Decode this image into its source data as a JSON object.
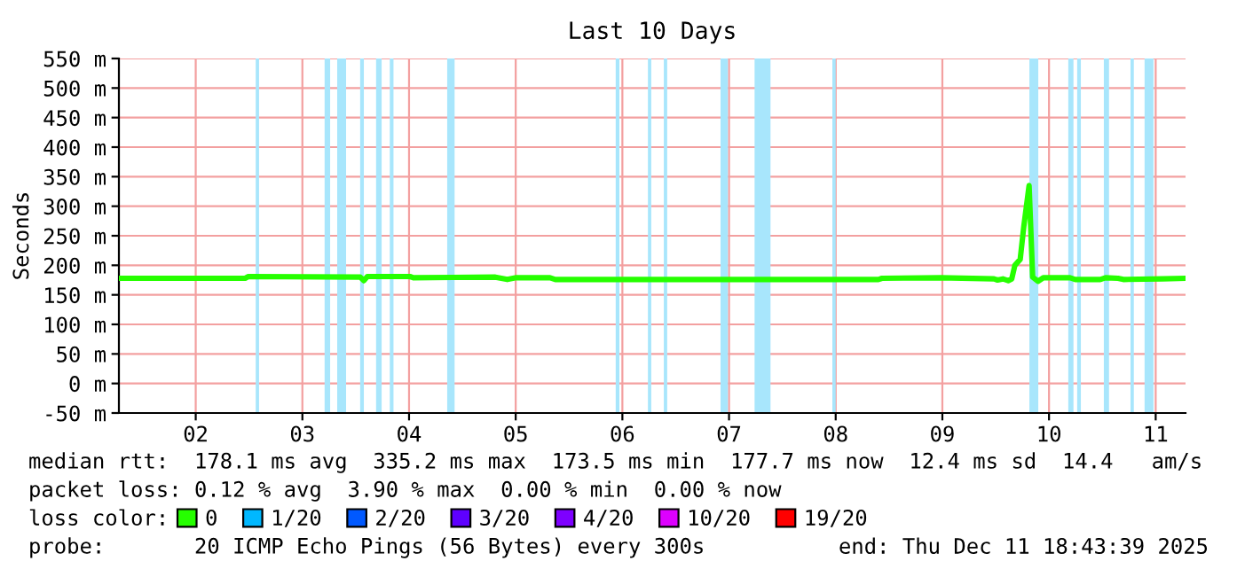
{
  "chart_data": {
    "type": "line",
    "title": "Last 10 Days",
    "ylabel": "Seconds",
    "xlim": [
      "2025-12-01T18:43",
      "2025-12-11T18:43"
    ],
    "xticks": [
      {
        "value": "2025-12-02T12:00",
        "label": "02"
      },
      {
        "value": "2025-12-03T12:00",
        "label": "03"
      },
      {
        "value": "2025-12-04T12:00",
        "label": "04"
      },
      {
        "value": "2025-12-05T12:00",
        "label": "05"
      },
      {
        "value": "2025-12-06T12:00",
        "label": "06"
      },
      {
        "value": "2025-12-07T12:00",
        "label": "07"
      },
      {
        "value": "2025-12-08T12:00",
        "label": "08"
      },
      {
        "value": "2025-12-09T12:00",
        "label": "09"
      },
      {
        "value": "2025-12-10T12:00",
        "label": "10"
      },
      {
        "value": "2025-12-11T12:00",
        "label": "11"
      }
    ],
    "ylim": [
      -50,
      550
    ],
    "yticks": [
      {
        "value": -50,
        "label": "-50 m"
      },
      {
        "value": 0,
        "label": "0 m"
      },
      {
        "value": 50,
        "label": "50 m"
      },
      {
        "value": 100,
        "label": "100 m"
      },
      {
        "value": 150,
        "label": "150 m"
      },
      {
        "value": 200,
        "label": "200 m"
      },
      {
        "value": 250,
        "label": "250 m"
      },
      {
        "value": 300,
        "label": "300 m"
      },
      {
        "value": 350,
        "label": "350 m"
      },
      {
        "value": 400,
        "label": "400 m"
      },
      {
        "value": 450,
        "label": "450 m"
      },
      {
        "value": 500,
        "label": "500 m"
      },
      {
        "value": 550,
        "label": "550 m"
      }
    ],
    "grid": true,
    "legend": "bottom",
    "legend_title": "loss color:",
    "x": [
      "2025-12-01T18:43",
      "2025-12-02T23:07",
      "2025-12-02T23:51",
      "2025-12-04T01:01",
      "2025-12-04T01:49",
      "2025-12-04T02:37",
      "2025-12-04T12:13",
      "2025-12-04T12:58",
      "2025-12-05T07:25",
      "2025-12-05T10:07",
      "2025-12-05T12:07",
      "2025-12-05T19:43",
      "2025-12-05T20:55",
      "2025-12-08T21:37",
      "2025-12-08T22:25",
      "2025-12-09T11:37",
      "2025-12-09T23:37",
      "2025-12-10T00:25",
      "2025-12-10T01:37",
      "2025-12-10T02:49",
      "2025-12-10T03:37",
      "2025-12-10T04:19",
      "2025-12-10T05:31",
      "2025-12-10T06:19",
      "2025-12-10T07:31",
      "2025-12-10T08:19",
      "2025-12-10T09:31",
      "2025-12-10T10:43",
      "2025-12-10T16:43",
      "2025-12-10T17:55",
      "2025-12-10T23:31",
      "2025-12-11T00:43",
      "2025-12-11T03:31",
      "2025-12-11T04:43",
      "2025-12-11T13:31",
      "2025-12-11T18:43"
    ],
    "series": [
      {
        "name": "0",
        "color": "#26ff00",
        "values": [
          178,
          178,
          181,
          180,
          174,
          181,
          181,
          179,
          180,
          176,
          179,
          179,
          176,
          176,
          178,
          179,
          177,
          175,
          177,
          174,
          177,
          200,
          210,
          265,
          335,
          180,
          173,
          179,
          179,
          176,
          176,
          179,
          178,
          176,
          177,
          178
        ]
      },
      {
        "name": "1/20",
        "color": "#00b8ff",
        "values": [
          null,
          null,
          null,
          null,
          null,
          null,
          null,
          null,
          null,
          null,
          null,
          null,
          null,
          null,
          null,
          null,
          null,
          null,
          null,
          null,
          null,
          null,
          null,
          null,
          null,
          null,
          null,
          null,
          null,
          null,
          null,
          null,
          null,
          null,
          null,
          null
        ]
      },
      {
        "name": "2/20",
        "color": "#0059ff",
        "values": [
          null,
          null,
          null,
          null,
          null,
          null,
          null,
          null,
          null,
          null,
          null,
          null,
          null,
          null,
          null,
          null,
          null,
          null,
          null,
          null,
          null,
          null,
          null,
          null,
          null,
          null,
          null,
          null,
          null,
          null,
          null,
          null,
          null,
          null,
          null,
          null
        ]
      },
      {
        "name": "3/20",
        "color": "#5e00ff",
        "values": [
          null,
          null,
          null,
          null,
          null,
          null,
          null,
          null,
          null,
          null,
          null,
          null,
          null,
          null,
          null,
          null,
          null,
          null,
          null,
          null,
          null,
          null,
          null,
          null,
          null,
          null,
          null,
          null,
          null,
          null,
          null,
          null,
          null,
          null,
          null,
          null
        ]
      },
      {
        "name": "4/20",
        "color": "#7e00ff",
        "values": [
          null,
          null,
          null,
          null,
          null,
          null,
          null,
          null,
          null,
          null,
          null,
          null,
          null,
          null,
          null,
          null,
          null,
          null,
          null,
          null,
          null,
          null,
          null,
          null,
          null,
          null,
          null,
          null,
          null,
          null,
          null,
          null,
          null,
          null,
          null,
          null
        ]
      },
      {
        "name": "10/20",
        "color": "#dd00ff",
        "values": [
          null,
          null,
          null,
          null,
          null,
          null,
          null,
          null,
          null,
          null,
          null,
          null,
          null,
          null,
          null,
          null,
          null,
          null,
          null,
          null,
          null,
          null,
          null,
          null,
          null,
          null,
          null,
          null,
          null,
          null,
          null,
          null,
          null,
          null,
          null,
          null
        ]
      },
      {
        "name": "19/20",
        "color": "#ff0000",
        "values": [
          null,
          null,
          null,
          null,
          null,
          null,
          null,
          null,
          null,
          null,
          null,
          null,
          null,
          null,
          null,
          null,
          null,
          null,
          null,
          null,
          null,
          null,
          null,
          null,
          null,
          null,
          null,
          null,
          null,
          null,
          null,
          null,
          null,
          null,
          null,
          null
        ]
      }
    ],
    "bands": [
      {
        "axis": "x",
        "from": "2025-12-03T01:30",
        "to": "2025-12-03T02:15",
        "color": "#a8e6fc"
      },
      {
        "axis": "x",
        "from": "2025-12-03T17:00",
        "to": "2025-12-03T18:15",
        "color": "#a8e6fc"
      },
      {
        "axis": "x",
        "from": "2025-12-03T19:50",
        "to": "2025-12-03T21:50",
        "color": "#a8e6fc"
      },
      {
        "axis": "x",
        "from": "2025-12-04T01:00",
        "to": "2025-12-04T01:50",
        "color": "#a8e6fc"
      },
      {
        "axis": "x",
        "from": "2025-12-04T04:35",
        "to": "2025-12-04T05:50",
        "color": "#a8e6fc"
      },
      {
        "axis": "x",
        "from": "2025-12-04T07:40",
        "to": "2025-12-04T08:30",
        "color": "#a8e6fc"
      },
      {
        "axis": "x",
        "from": "2025-12-04T20:35",
        "to": "2025-12-04T22:15",
        "color": "#a8e6fc"
      },
      {
        "axis": "x",
        "from": "2025-12-06T10:30",
        "to": "2025-12-06T11:20",
        "color": "#a8e6fc"
      },
      {
        "axis": "x",
        "from": "2025-12-06T17:45",
        "to": "2025-12-06T18:30",
        "color": "#a8e6fc"
      },
      {
        "axis": "x",
        "from": "2025-12-06T21:20",
        "to": "2025-12-06T22:05",
        "color": "#a8e6fc"
      },
      {
        "axis": "x",
        "from": "2025-12-07T10:05",
        "to": "2025-12-07T11:45",
        "color": "#a8e6fc"
      },
      {
        "axis": "x",
        "from": "2025-12-07T17:45",
        "to": "2025-12-07T21:20",
        "color": "#a8e6fc"
      },
      {
        "axis": "x",
        "from": "2025-12-08T11:15",
        "to": "2025-12-08T12:00",
        "color": "#a8e6fc"
      },
      {
        "axis": "x",
        "from": "2025-12-10T07:35",
        "to": "2025-12-10T09:35",
        "color": "#a8e6fc"
      },
      {
        "axis": "x",
        "from": "2025-12-10T16:20",
        "to": "2025-12-10T17:30",
        "color": "#a8e6fc"
      },
      {
        "axis": "x",
        "from": "2025-12-10T18:20",
        "to": "2025-12-10T19:10",
        "color": "#a8e6fc"
      },
      {
        "axis": "x",
        "from": "2025-12-11T00:20",
        "to": "2025-12-11T01:30",
        "color": "#a8e6fc"
      },
      {
        "axis": "x",
        "from": "2025-12-11T06:20",
        "to": "2025-12-11T07:05",
        "color": "#a8e6fc"
      },
      {
        "axis": "x",
        "from": "2025-12-11T09:30",
        "to": "2025-12-11T11:30",
        "color": "#a8e6fc"
      }
    ],
    "annotations": [
      "median rtt:  178.1 ms avg  335.2 ms max  173.5 ms min  177.7 ms now  12.4 ms sd  14.4   am/s",
      "packet loss: 0.12 % avg  3.90 % max  0.00 % min  0.00 % now",
      "probe:       20 ICMP Echo Pings (56 Bytes) every 300s",
      "end: Thu Dec 11 18:43:39 2025"
    ]
  }
}
